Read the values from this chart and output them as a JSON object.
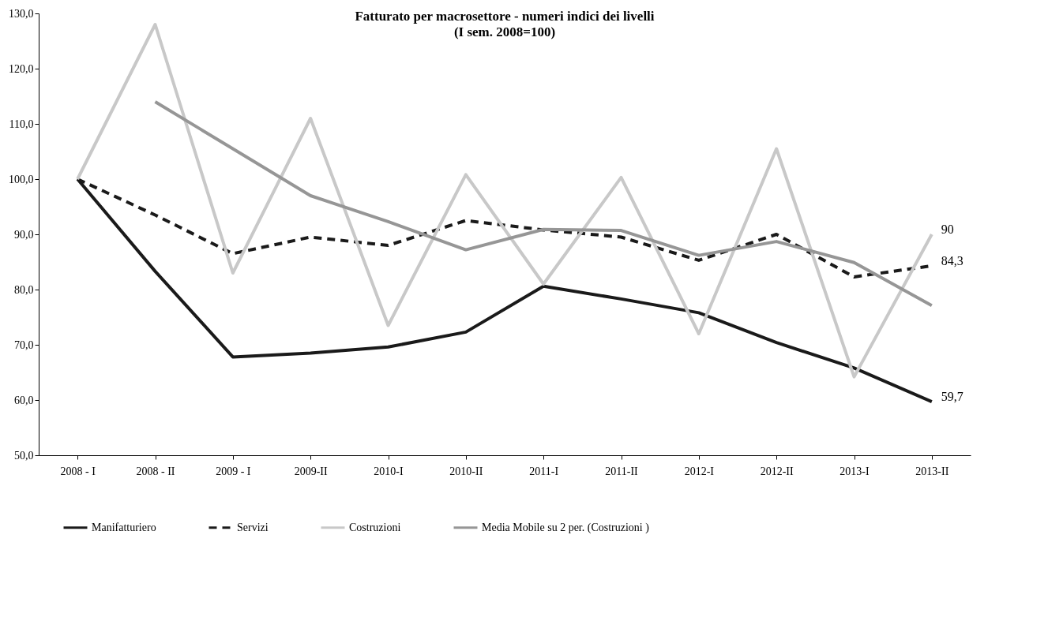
{
  "chart_data": {
    "type": "line",
    "title": "Fatturato per macrosettore - numeri indici dei livelli",
    "subtitle": "(I sem. 2008=100)",
    "categories": [
      "2008 - I",
      "2008 - II",
      "2009 - I",
      "2009-II",
      "2010-I",
      "2010-II",
      "2011-I",
      "2011-II",
      "2012-I",
      "2012-II",
      "2013-I",
      "2013-II"
    ],
    "series": [
      {
        "name": "Manifatturiero",
        "color": "#1a1a1a",
        "line_style": "solid",
        "values": [
          100,
          83.3,
          67.8,
          68.5,
          69.6,
          72.3,
          80.6,
          78.3,
          75.8,
          70.4,
          65.8,
          59.7
        ],
        "value_labels": [
          null,
          null,
          null,
          null,
          null,
          null,
          null,
          null,
          null,
          null,
          null,
          "59,7"
        ]
      },
      {
        "name": "Servizi",
        "color": "#1a1a1a",
        "line_style": "dashed",
        "values": [
          100,
          93.5,
          86.5,
          89.5,
          88.0,
          92.5,
          90.8,
          89.5,
          85.3,
          90.0,
          82.3,
          84.3
        ],
        "value_labels": [
          null,
          null,
          null,
          null,
          null,
          null,
          null,
          null,
          null,
          null,
          null,
          "84,3"
        ]
      },
      {
        "name": "Costruzioni",
        "color": "#c8c8c8",
        "line_style": "solid",
        "values": [
          100,
          128,
          83,
          111,
          73.5,
          100.8,
          81,
          100.3,
          72,
          105.5,
          64.2,
          90
        ],
        "value_labels": [
          null,
          null,
          null,
          null,
          null,
          null,
          null,
          null,
          null,
          null,
          null,
          "90"
        ]
      },
      {
        "name": "Media Mobile su 2 per. (Costruzioni )",
        "color": "#969696",
        "line_style": "solid",
        "values": [
          null,
          114,
          105.5,
          97,
          92.3,
          87.2,
          90.9,
          90.7,
          86.2,
          88.7,
          84.9,
          77.1
        ]
      }
    ],
    "ylim": [
      50,
      130
    ],
    "yticks": [
      {
        "value": 50,
        "label": "50,0"
      },
      {
        "value": 60,
        "label": "60,0"
      },
      {
        "value": 70,
        "label": "70,0"
      },
      {
        "value": 80,
        "label": "80,0"
      },
      {
        "value": 90,
        "label": "90,0"
      },
      {
        "value": 100,
        "label": "100,0"
      },
      {
        "value": 110,
        "label": "110,0"
      },
      {
        "value": 120,
        "label": "120,0"
      },
      {
        "value": 130,
        "label": "130,0"
      }
    ],
    "grid": false,
    "legend": "bottom",
    "marker": "none"
  }
}
